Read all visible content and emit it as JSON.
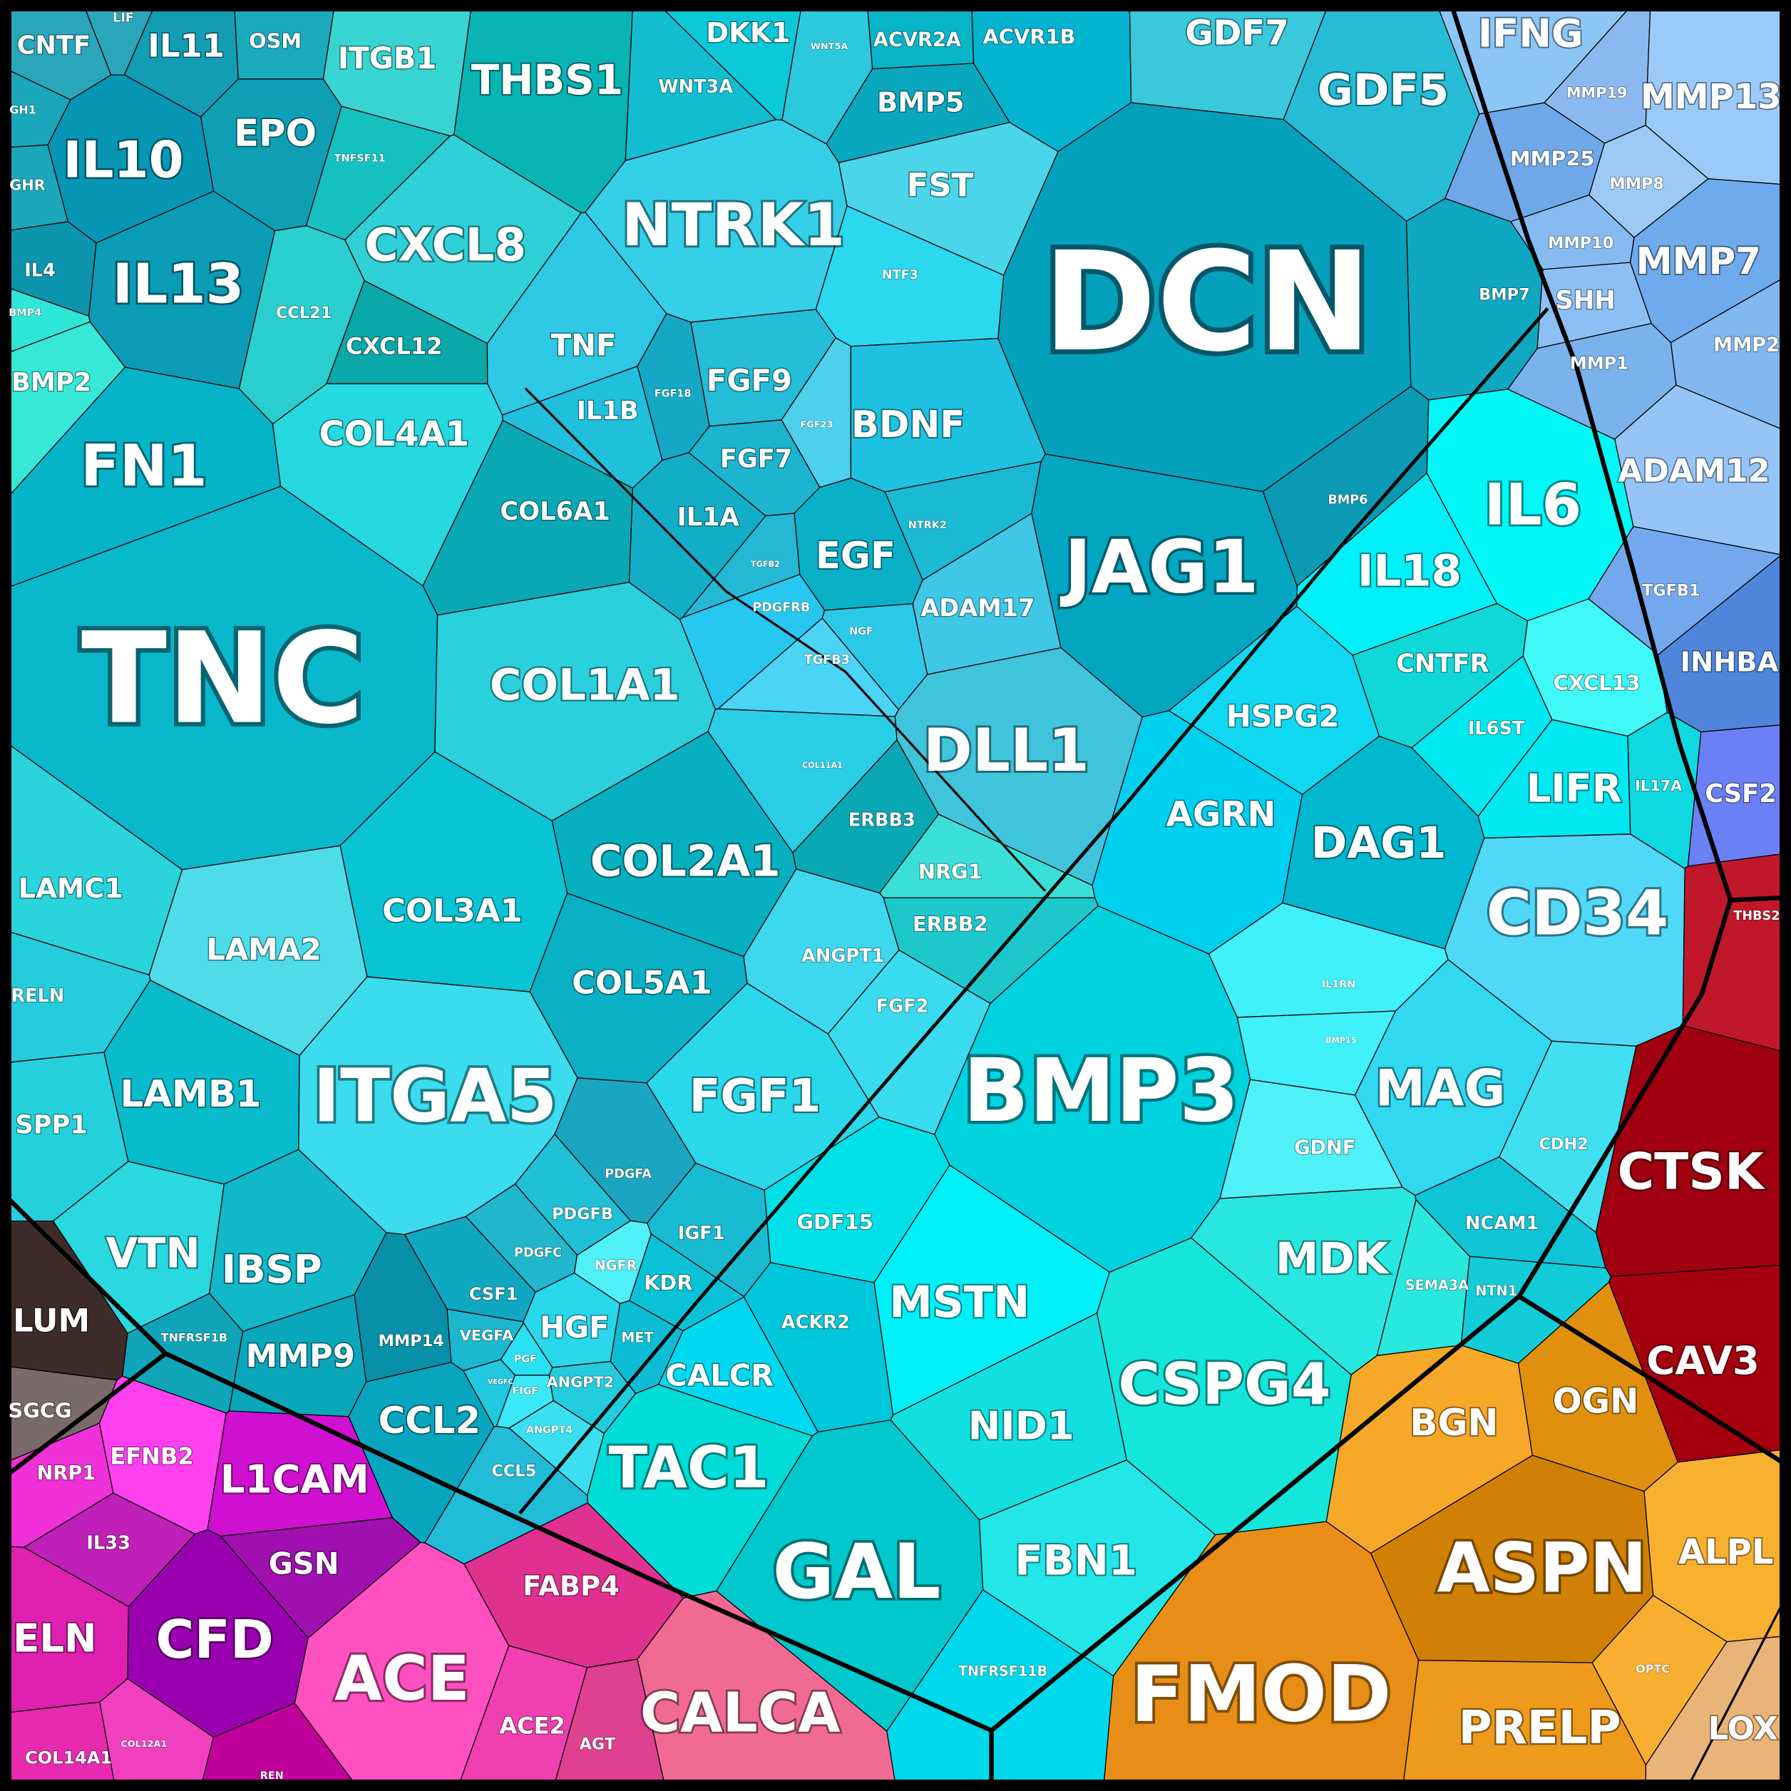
{
  "nodes": [
    {
      "label": "CNTF"
    },
    {
      "label": "LIF"
    },
    {
      "label": "IL11"
    },
    {
      "label": "OSM"
    },
    {
      "label": "GH1"
    },
    {
      "label": "GHR"
    },
    {
      "label": "IL10"
    },
    {
      "label": "EPO"
    },
    {
      "label": "IL13"
    },
    {
      "label": "IL4"
    },
    {
      "label": "BMP4"
    },
    {
      "label": "BMP2"
    },
    {
      "label": "ITGB1"
    },
    {
      "label": "THBS1"
    },
    {
      "label": "TNFSF11"
    },
    {
      "label": "CXCL8"
    },
    {
      "label": "CCL21"
    },
    {
      "label": "CXCL12"
    },
    {
      "label": "DKK1"
    },
    {
      "label": "WNT5A"
    },
    {
      "label": "WNT3A"
    },
    {
      "label": "ACVR2A"
    },
    {
      "label": "ACVR1B"
    },
    {
      "label": "BMP5"
    },
    {
      "label": "GDF7"
    },
    {
      "label": "GDF5"
    },
    {
      "label": "NTRK1"
    },
    {
      "label": "FST"
    },
    {
      "label": "NTF3"
    },
    {
      "label": "DCN"
    },
    {
      "label": "BMP7"
    },
    {
      "label": "TNF"
    },
    {
      "label": "IL1B"
    },
    {
      "label": "FGF18"
    },
    {
      "label": "FGF9"
    },
    {
      "label": "FGF23"
    },
    {
      "label": "BDNF"
    },
    {
      "label": "FGF7"
    },
    {
      "label": "IL1A"
    },
    {
      "label": "EGF"
    },
    {
      "label": "NTRK2"
    },
    {
      "label": "TGFB2"
    },
    {
      "label": "PDGFRB"
    },
    {
      "label": "NGF"
    },
    {
      "label": "TGFB3"
    },
    {
      "label": "ADAM17"
    },
    {
      "label": "JAG1"
    },
    {
      "label": "BMP6"
    },
    {
      "label": "FN1"
    },
    {
      "label": "COL4A1"
    },
    {
      "label": "COL6A1"
    },
    {
      "label": "TNC"
    },
    {
      "label": "COL1A1"
    },
    {
      "label": "COL11A1"
    },
    {
      "label": "DLL1"
    },
    {
      "label": "COL2A1"
    },
    {
      "label": "ERBB3"
    },
    {
      "label": "NRG1"
    },
    {
      "label": "ERBB2"
    },
    {
      "label": "LAMC1"
    },
    {
      "label": "COL3A1"
    },
    {
      "label": "LAMA2"
    },
    {
      "label": "COL5A1"
    },
    {
      "label": "ANGPT1"
    },
    {
      "label": "FGF2"
    },
    {
      "label": "RELN"
    },
    {
      "label": "SPP1"
    },
    {
      "label": "LAMB1"
    },
    {
      "label": "ITGA5"
    },
    {
      "label": "FGF1"
    },
    {
      "label": "BMP3"
    },
    {
      "label": "VTN"
    },
    {
      "label": "IBSP"
    },
    {
      "label": "PDGFA"
    },
    {
      "label": "PDGFB"
    },
    {
      "label": "PDGFC"
    },
    {
      "label": "IGF1"
    },
    {
      "label": "NGFR"
    },
    {
      "label": "KDR"
    },
    {
      "label": "CSF1"
    },
    {
      "label": "HGF"
    },
    {
      "label": "VEGFA"
    },
    {
      "label": "MET"
    },
    {
      "label": "PGF"
    },
    {
      "label": "VEGFC"
    },
    {
      "label": "FIGF"
    },
    {
      "label": "ANGPT2"
    },
    {
      "label": "ANGPT4"
    },
    {
      "label": "CCL5"
    },
    {
      "label": "TNFRSF1B"
    },
    {
      "label": "MMP9"
    },
    {
      "label": "MMP14"
    },
    {
      "label": "CCL2"
    },
    {
      "label": "GDF15"
    },
    {
      "label": "ACKR2"
    },
    {
      "label": "CALCR"
    },
    {
      "label": "MSTN"
    },
    {
      "label": "TAC1"
    },
    {
      "label": "NID1"
    },
    {
      "label": "CSPG4"
    },
    {
      "label": "GAL"
    },
    {
      "label": "FBN1"
    },
    {
      "label": "TNFRSF11B"
    },
    {
      "label": "MDK"
    },
    {
      "label": "SEMA3A"
    },
    {
      "label": "NTN1"
    },
    {
      "label": "NCAM1"
    },
    {
      "label": "GDNF"
    },
    {
      "label": "CDH2"
    },
    {
      "label": "MAG"
    },
    {
      "label": "IL1RN"
    },
    {
      "label": "BMP15"
    },
    {
      "label": "CD34"
    },
    {
      "label": "DAG1"
    },
    {
      "label": "AGRN"
    },
    {
      "label": "HSPG2"
    },
    {
      "label": "LIFR"
    },
    {
      "label": "IL17A"
    },
    {
      "label": "IL6ST"
    },
    {
      "label": "CXCL13"
    },
    {
      "label": "CNTFR"
    },
    {
      "label": "IL18"
    },
    {
      "label": "IL6"
    },
    {
      "label": "IFNG"
    },
    {
      "label": "MMP19"
    },
    {
      "label": "MMP13"
    },
    {
      "label": "MMP25"
    },
    {
      "label": "MMP8"
    },
    {
      "label": "MMP10"
    },
    {
      "label": "MMP7"
    },
    {
      "label": "SHH"
    },
    {
      "label": "MMP2"
    },
    {
      "label": "MMP1"
    },
    {
      "label": "ADAM12"
    },
    {
      "label": "TGFB1"
    },
    {
      "label": "INHBA"
    },
    {
      "label": "CSF2"
    },
    {
      "label": "THBS2"
    },
    {
      "label": "CTSK"
    },
    {
      "label": "CAV3"
    },
    {
      "label": "BGN"
    },
    {
      "label": "OGN"
    },
    {
      "label": "ALPL"
    },
    {
      "label": "ASPN"
    },
    {
      "label": "FMOD"
    },
    {
      "label": "PRELP"
    },
    {
      "label": "OPTC"
    },
    {
      "label": "LOX"
    },
    {
      "label": "LUM"
    },
    {
      "label": "SGCG"
    },
    {
      "label": "NRP1"
    },
    {
      "label": "EFNB2"
    },
    {
      "label": "L1CAM"
    },
    {
      "label": "IL33"
    },
    {
      "label": "GSN"
    },
    {
      "label": "ELN"
    },
    {
      "label": "CFD"
    },
    {
      "label": "ACE"
    },
    {
      "label": "FABP4"
    },
    {
      "label": "ACE2"
    },
    {
      "label": "COL14A1"
    },
    {
      "label": "COL12A1"
    },
    {
      "label": "REN"
    },
    {
      "label": "AGT"
    },
    {
      "label": "CALCA"
    }
  ]
}
